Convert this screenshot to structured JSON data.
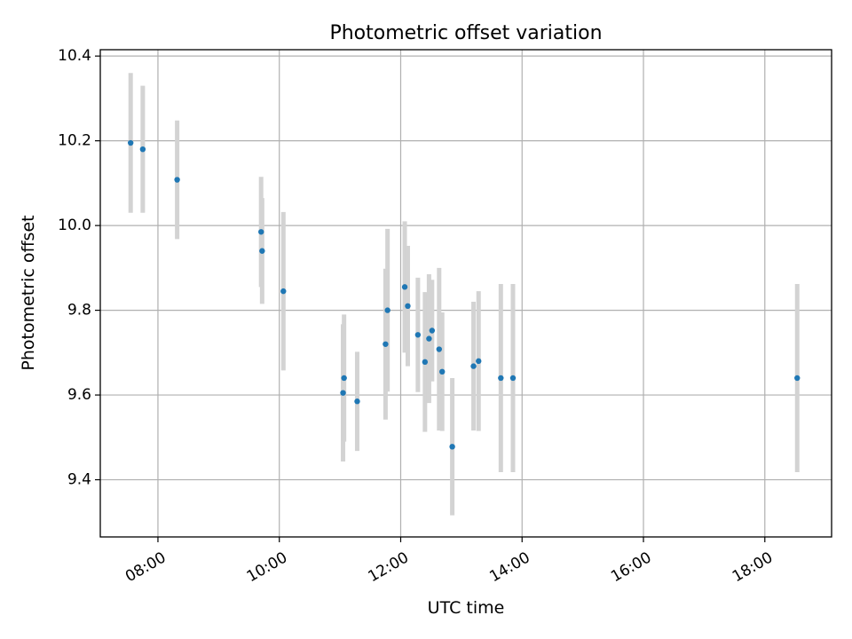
{
  "chart_data": {
    "type": "scatter",
    "title": "Photometric offset variation",
    "xlabel": "UTC time",
    "ylabel": "Photometric offset",
    "x_ticks": [
      "08:00",
      "10:00",
      "12:00",
      "14:00",
      "16:00",
      "18:00"
    ],
    "y_ticks": [
      "9.4",
      "9.6",
      "9.8",
      "10.0",
      "10.2",
      "10.4"
    ],
    "xlim": [
      "07:03",
      "19:06"
    ],
    "ylim": [
      9.265,
      10.415
    ],
    "grid": true,
    "colors": {
      "point": "#1f77b4",
      "errorbar": "#d3d3d3"
    },
    "points": [
      {
        "x": "07:33",
        "y": 10.195,
        "err": 0.165
      },
      {
        "x": "07:45",
        "y": 10.18,
        "err": 0.15
      },
      {
        "x": "08:19",
        "y": 10.108,
        "err": 0.14
      },
      {
        "x": "09:42",
        "y": 9.985,
        "err": 0.13
      },
      {
        "x": "09:43",
        "y": 9.94,
        "err": 0.125
      },
      {
        "x": "10:04",
        "y": 9.845,
        "err": 0.187
      },
      {
        "x": "11:03",
        "y": 9.605,
        "err": 0.162
      },
      {
        "x": "11:04",
        "y": 9.64,
        "err": 0.15
      },
      {
        "x": "11:17",
        "y": 9.585,
        "err": 0.117
      },
      {
        "x": "11:45",
        "y": 9.72,
        "err": 0.178
      },
      {
        "x": "11:47",
        "y": 9.8,
        "err": 0.192
      },
      {
        "x": "12:04",
        "y": 9.855,
        "err": 0.155
      },
      {
        "x": "12:07",
        "y": 9.81,
        "err": 0.142
      },
      {
        "x": "12:17",
        "y": 9.742,
        "err": 0.135
      },
      {
        "x": "12:24",
        "y": 9.678,
        "err": 0.165
      },
      {
        "x": "12:28",
        "y": 9.733,
        "err": 0.152
      },
      {
        "x": "12:31",
        "y": 9.752,
        "err": 0.12
      },
      {
        "x": "12:38",
        "y": 9.708,
        "err": 0.192
      },
      {
        "x": "12:41",
        "y": 9.655,
        "err": 0.14
      },
      {
        "x": "12:51",
        "y": 9.478,
        "err": 0.162
      },
      {
        "x": "13:12",
        "y": 9.668,
        "err": 0.152
      },
      {
        "x": "13:17",
        "y": 9.68,
        "err": 0.165
      },
      {
        "x": "13:39",
        "y": 9.64,
        "err": 0.222
      },
      {
        "x": "13:51",
        "y": 9.64,
        "err": 0.222
      },
      {
        "x": "18:32",
        "y": 9.64,
        "err": 0.222
      }
    ]
  }
}
